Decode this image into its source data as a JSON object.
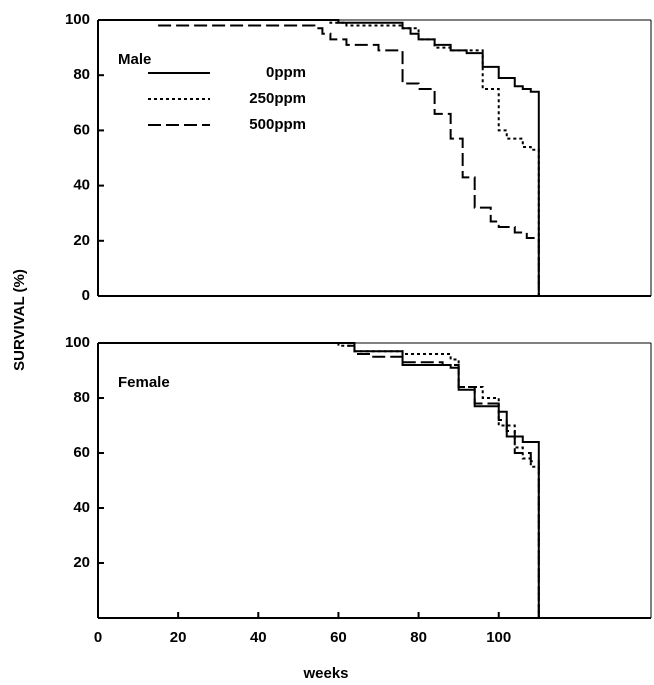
{
  "chart_data": [
    {
      "type": "step",
      "annotation": "Male",
      "ylabel": "SURVIVAL (%)",
      "xlim": [
        0,
        138
      ],
      "ylim": [
        0,
        100
      ],
      "yticks": [
        0,
        20,
        40,
        60,
        80,
        100
      ],
      "legend": "upper-left",
      "series": [
        {
          "name": "0ppm",
          "color": "#000000",
          "dash": "solid",
          "x": [
            0,
            60,
            76,
            78,
            80,
            84,
            88,
            92,
            96,
            100,
            104,
            106,
            108,
            110
          ],
          "values": [
            100,
            99,
            97,
            95,
            93,
            91,
            89,
            88,
            83,
            79,
            76,
            75,
            74,
            0
          ]
        },
        {
          "name": "250ppm",
          "color": "#000000",
          "dash": "dotted",
          "x": [
            0,
            58,
            62,
            76,
            80,
            84,
            88,
            96,
            100,
            102,
            106,
            108,
            110
          ],
          "values": [
            100,
            99,
            98,
            97,
            93,
            90,
            89,
            75,
            60,
            57,
            54,
            53,
            0
          ]
        },
        {
          "name": "500ppm",
          "color": "#000000",
          "dash": "dashed",
          "x": [
            15,
            54,
            56,
            58,
            62,
            70,
            76,
            80,
            84,
            88,
            91,
            94,
            98,
            100,
            104,
            107,
            110
          ],
          "values": [
            98,
            97,
            95,
            93,
            91,
            89,
            77,
            75,
            66,
            57,
            43,
            32,
            27,
            25,
            23,
            21,
            0
          ]
        }
      ]
    },
    {
      "type": "step",
      "annotation": "Female",
      "xlabel": "weeks",
      "xlim": [
        0,
        138
      ],
      "xticks": [
        0,
        20,
        40,
        60,
        80,
        100
      ],
      "ylim": [
        0,
        100
      ],
      "yticks": [
        20,
        40,
        60,
        80,
        100
      ],
      "series": [
        {
          "color": "#000000",
          "dash": "solid",
          "x": [
            0,
            64,
            76,
            88,
            90,
            94,
            100,
            102,
            106,
            110
          ],
          "values": [
            100,
            97,
            92,
            91,
            83,
            77,
            75,
            66,
            64,
            0
          ]
        },
        {
          "color": "#000000",
          "dash": "dotted",
          "x": [
            0,
            60,
            64,
            76,
            88,
            90,
            96,
            100,
            104,
            106,
            108,
            110
          ],
          "values": [
            100,
            99,
            97,
            96,
            94,
            84,
            80,
            70,
            62,
            58,
            55,
            0
          ]
        },
        {
          "color": "#000000",
          "dash": "dashed",
          "x": [
            0,
            62,
            64,
            68,
            76,
            86,
            90,
            94,
            100,
            102,
            104,
            108,
            110
          ],
          "values": [
            100,
            99,
            96,
            95,
            93,
            92,
            84,
            78,
            72,
            68,
            60,
            57,
            0
          ]
        }
      ]
    }
  ]
}
